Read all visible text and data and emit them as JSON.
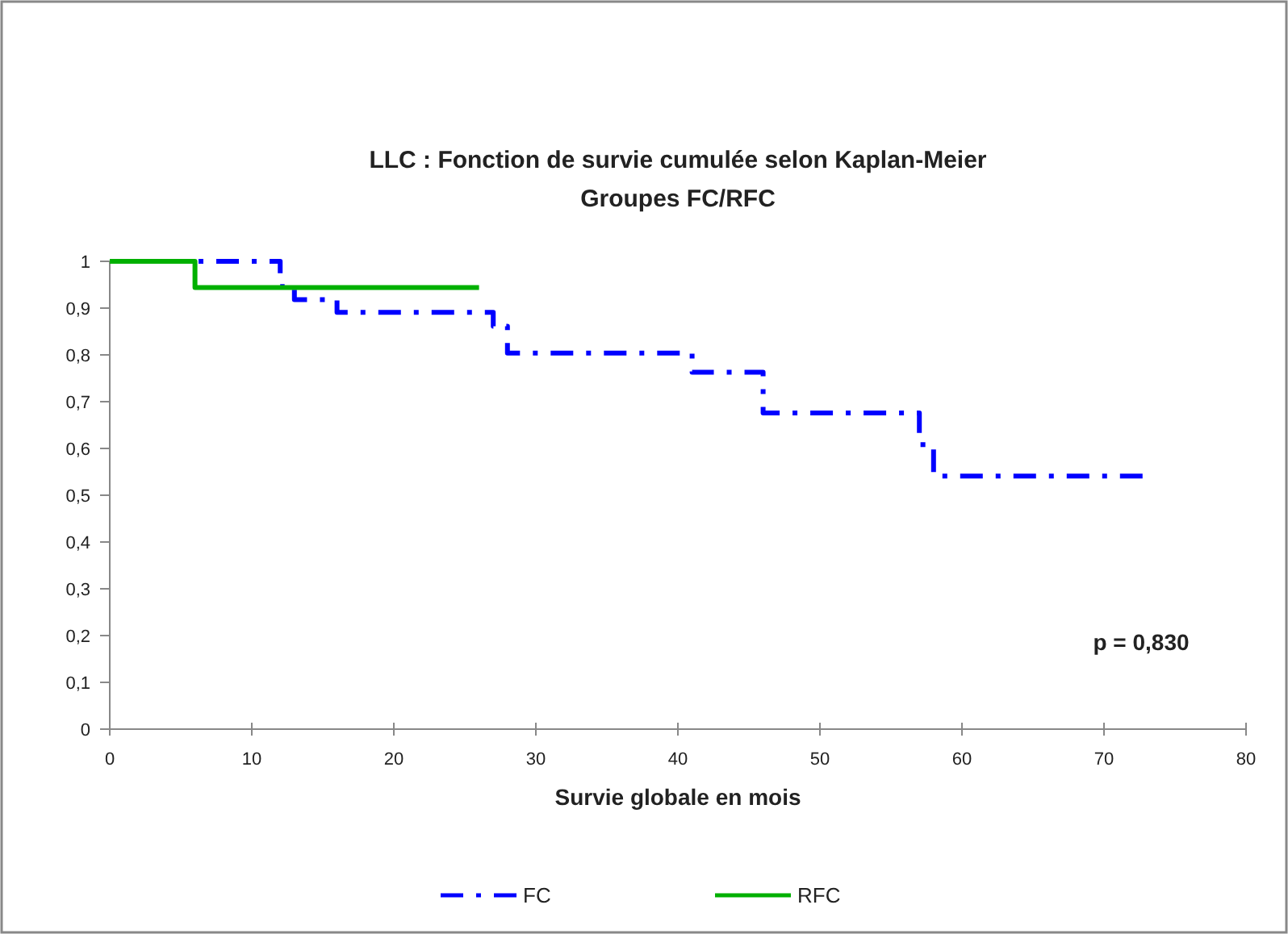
{
  "chart_data": {
    "type": "step",
    "title": "LLC : Fonction de survie cumulée selon Kaplan-Meier",
    "subtitle": "Groupes FC/RFC",
    "xlabel": "Survie globale en mois",
    "xlim": [
      0,
      80
    ],
    "xticks": [
      0,
      10,
      20,
      30,
      40,
      50,
      60,
      70,
      80
    ],
    "ylim": [
      0,
      1
    ],
    "yticks": [
      0,
      {
        "value": 0.1,
        "label": "0,1"
      },
      {
        "value": 0.2,
        "label": "0,2"
      },
      {
        "value": 0.3,
        "label": "0,3"
      },
      {
        "value": 0.4,
        "label": "0,4"
      },
      {
        "value": 0.5,
        "label": "0,5"
      },
      {
        "value": 0.6,
        "label": "0,6"
      },
      {
        "value": 0.7,
        "label": "0,7"
      },
      {
        "value": 0.8,
        "label": "0,8"
      },
      {
        "value": 0.9,
        "label": "0,9"
      },
      1
    ],
    "grid": false,
    "legend": "bottom",
    "marker": "none",
    "series": [
      {
        "name": "FC",
        "color": "#0000ff",
        "line_style": "dashed",
        "x": [
          0,
          12,
          13,
          16,
          27,
          28,
          41,
          46,
          57,
          58,
          73
        ],
        "values": [
          1,
          0.946,
          0.918,
          0.891,
          0.861,
          0.804,
          0.763,
          0.676,
          0.608,
          0.541,
          0.541
        ]
      },
      {
        "name": "RFC",
        "color": "#00b000",
        "line_style": "solid",
        "x": [
          0,
          6,
          26
        ],
        "values": [
          1,
          0.944,
          0.944
        ]
      }
    ],
    "annotations": [
      "p = 0,830"
    ]
  }
}
